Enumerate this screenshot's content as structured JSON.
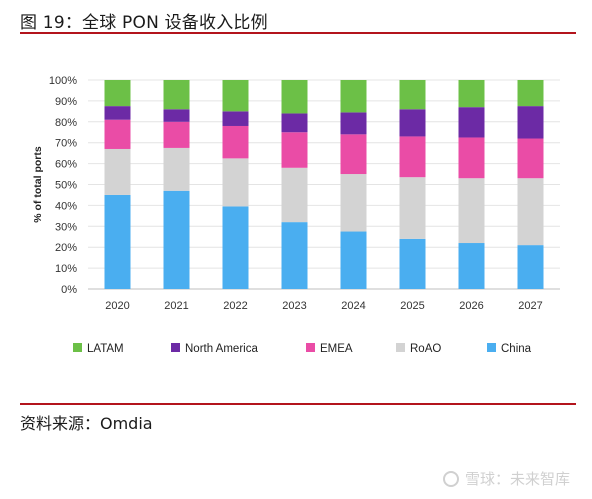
{
  "header": {
    "title": "图 19：全球 PON 设备收入比例"
  },
  "footer": {
    "source": "资料来源：Omdia",
    "watermark": "雪球：未来智库"
  },
  "chart_data": {
    "type": "bar",
    "stacked": true,
    "categories": [
      "2020",
      "2021",
      "2022",
      "2023",
      "2024",
      "2025",
      "2026",
      "2027"
    ],
    "ylabel": "% of total ports",
    "ylim": [
      0,
      100
    ],
    "yticks": [
      "0%",
      "10%",
      "20%",
      "30%",
      "40%",
      "50%",
      "60%",
      "70%",
      "80%",
      "90%",
      "100%"
    ],
    "grid": true,
    "legend_position": "bottom",
    "series": [
      {
        "name": "China",
        "color": "#4aaef0",
        "values": [
          45,
          47,
          39.5,
          32,
          27.5,
          24,
          22,
          21
        ]
      },
      {
        "name": "RoAO",
        "color": "#d3d3d3",
        "values": [
          22,
          20.5,
          23,
          26,
          27.5,
          29.5,
          31,
          32
        ]
      },
      {
        "name": "EMEA",
        "color": "#ea4ca6",
        "values": [
          14,
          12.5,
          15.5,
          17,
          19,
          19.5,
          19.5,
          19
        ]
      },
      {
        "name": "North America",
        "color": "#6c2aa5",
        "values": [
          6.5,
          6,
          7,
          9,
          10.5,
          13,
          14.5,
          15.5
        ]
      },
      {
        "name": "LATAM",
        "color": "#6cc047",
        "values": [
          12.5,
          14,
          15,
          16,
          15.5,
          14,
          13,
          12.5
        ]
      }
    ],
    "legend_order": [
      "LATAM",
      "North America",
      "EMEA",
      "RoAO",
      "China"
    ]
  }
}
